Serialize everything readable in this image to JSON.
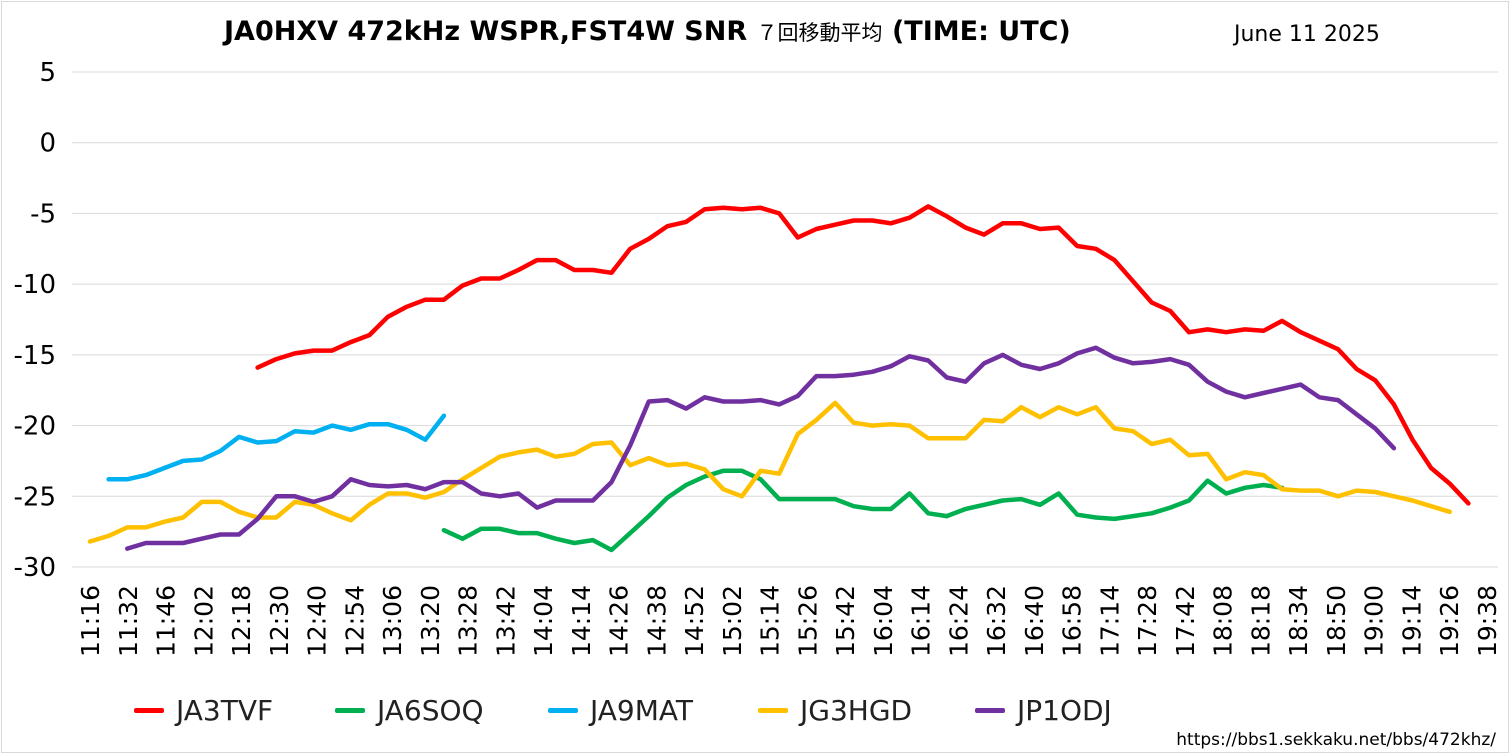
{
  "title_main": "JA0HXV 472kHz WSPR,FST4W SNR",
  "title_jp": "７回移動平均",
  "title_suffix": "(TIME: UTC)",
  "date": "June 11 2025",
  "footer_url": "https://bbs1.sekkaku.net/bbs/472khz/",
  "chart_data": {
    "type": "line",
    "title": "JA0HXV 472kHz WSPR,FST4W SNR ７回移動平均 (TIME: UTC)",
    "xlabel": "",
    "ylabel": "",
    "ylim": [
      -30,
      5
    ],
    "yticks": [
      5,
      0,
      -5,
      -10,
      -15,
      -20,
      -25,
      -30
    ],
    "grid": true,
    "legend_position": "bottom",
    "x_tick_labels": [
      "11:16",
      "11:32",
      "11:46",
      "12:02",
      "12:18",
      "12:30",
      "12:40",
      "12:54",
      "13:06",
      "13:20",
      "13:28",
      "13:42",
      "14:04",
      "14:14",
      "14:26",
      "14:38",
      "14:52",
      "15:02",
      "15:14",
      "15:26",
      "15:42",
      "16:04",
      "16:14",
      "16:24",
      "16:32",
      "16:40",
      "16:58",
      "17:14",
      "17:28",
      "17:42",
      "18:08",
      "18:18",
      "18:34",
      "18:50",
      "19:00",
      "19:14",
      "19:26",
      "19:38"
    ],
    "n_points": 76,
    "series": [
      {
        "name": "JA3TVF",
        "color": "#ff0000",
        "start": 9,
        "values": [
          -15.9,
          -15.3,
          -14.9,
          -14.7,
          -14.7,
          -14.1,
          -13.6,
          -12.3,
          -11.6,
          -11.1,
          -11.1,
          -10.1,
          -9.6,
          -9.6,
          -9.0,
          -8.3,
          -8.3,
          -9.0,
          -9.0,
          -9.2,
          -7.5,
          -6.8,
          -5.9,
          -5.6,
          -4.7,
          -4.6,
          -4.7,
          -4.6,
          -5.0,
          -6.7,
          -6.1,
          -5.8,
          -5.5,
          -5.5,
          -5.7,
          -5.3,
          -4.5,
          -5.2,
          -6.0,
          -6.5,
          -5.7,
          -5.7,
          -6.1,
          -6.0,
          -7.3,
          -7.5,
          -8.3,
          -9.8,
          -11.3,
          -11.9,
          -13.4,
          -13.2,
          -13.4,
          -13.2,
          -13.3,
          -12.6,
          -13.4,
          -14.0,
          -14.6,
          -16.0,
          -16.8,
          -18.5,
          -21.0,
          -23.0,
          -24.1,
          -25.5
        ]
      },
      {
        "name": "JA6SOQ",
        "color": "#00b050",
        "start": 19,
        "values": [
          -27.4,
          -28.0,
          -27.3,
          -27.3,
          -27.6,
          -27.6,
          -28.0,
          -28.3,
          -28.1,
          -28.8,
          -27.6,
          -26.4,
          -25.1,
          -24.2,
          -23.6,
          -23.2,
          -23.2,
          -23.8,
          -25.2,
          -25.2,
          -25.2,
          -25.2,
          -25.7,
          -25.9,
          -25.9,
          -24.8,
          -26.2,
          -26.4,
          -25.9,
          -25.6,
          -25.3,
          -25.2,
          -25.6,
          -24.8,
          -26.3,
          -26.5,
          -26.6,
          -26.4,
          -26.2,
          -25.8,
          -25.3,
          -23.9,
          -24.8,
          -24.4,
          -24.2,
          -24.4
        ]
      },
      {
        "name": "JA9MAT",
        "color": "#00b0f0",
        "start": 1,
        "values": [
          -23.8,
          -23.8,
          -23.5,
          -23.0,
          -22.5,
          -22.4,
          -21.8,
          -20.8,
          -21.2,
          -21.1,
          -20.4,
          -20.5,
          -20.0,
          -20.3,
          -19.9,
          -19.9,
          -20.3,
          -21.0,
          -19.3
        ]
      },
      {
        "name": "JG3HGD",
        "color": "#ffc000",
        "start": 0,
        "values": [
          -28.2,
          -27.8,
          -27.2,
          -27.2,
          -26.8,
          -26.5,
          -25.4,
          -25.4,
          -26.1,
          -26.5,
          -26.5,
          -25.4,
          -25.6,
          -26.2,
          -26.7,
          -25.6,
          -24.8,
          -24.8,
          -25.1,
          -24.7,
          -23.8,
          -23.0,
          -22.2,
          -21.9,
          -21.7,
          -22.2,
          -22.0,
          -21.3,
          -21.2,
          -22.8,
          -22.3,
          -22.8,
          -22.7,
          -23.1,
          -24.5,
          -25.0,
          -23.2,
          -23.4,
          -20.6,
          -19.6,
          -18.4,
          -19.8,
          -20.0,
          -19.9,
          -20.0,
          -20.9,
          -20.9,
          -20.9,
          -19.6,
          -19.7,
          -18.7,
          -19.4,
          -18.7,
          -19.2,
          -18.7,
          -20.2,
          -20.4,
          -21.3,
          -21.0,
          -22.1,
          -22.0,
          -23.8,
          -23.3,
          -23.5,
          -24.5,
          -24.6,
          -24.6,
          -25.0,
          -24.6,
          -24.7,
          -25.0,
          -25.3,
          -25.7,
          -26.1
        ]
      },
      {
        "name": "JP1ODJ",
        "color": "#7030a0",
        "start": 2,
        "values": [
          -28.7,
          -28.3,
          -28.3,
          -28.3,
          -28.0,
          -27.7,
          -27.7,
          -26.6,
          -25.0,
          -25.0,
          -25.4,
          -25.0,
          -23.8,
          -24.2,
          -24.3,
          -24.2,
          -24.5,
          -24.0,
          -24.0,
          -24.8,
          -25.0,
          -24.8,
          -25.8,
          -25.3,
          -25.3,
          -25.3,
          -24.0,
          -21.4,
          -18.3,
          -18.2,
          -18.8,
          -18.0,
          -18.3,
          -18.3,
          -18.2,
          -18.5,
          -17.9,
          -16.5,
          -16.5,
          -16.4,
          -16.2,
          -15.8,
          -15.1,
          -15.4,
          -16.6,
          -16.9,
          -15.6,
          -15.0,
          -15.7,
          -16.0,
          -15.6,
          -14.9,
          -14.5,
          -15.2,
          -15.6,
          -15.5,
          -15.3,
          -15.7,
          -16.9,
          -17.6,
          -18.0,
          -17.7,
          -17.4,
          -17.1,
          -18.0,
          -18.2,
          -19.2,
          -20.2,
          -21.6
        ]
      }
    ]
  }
}
